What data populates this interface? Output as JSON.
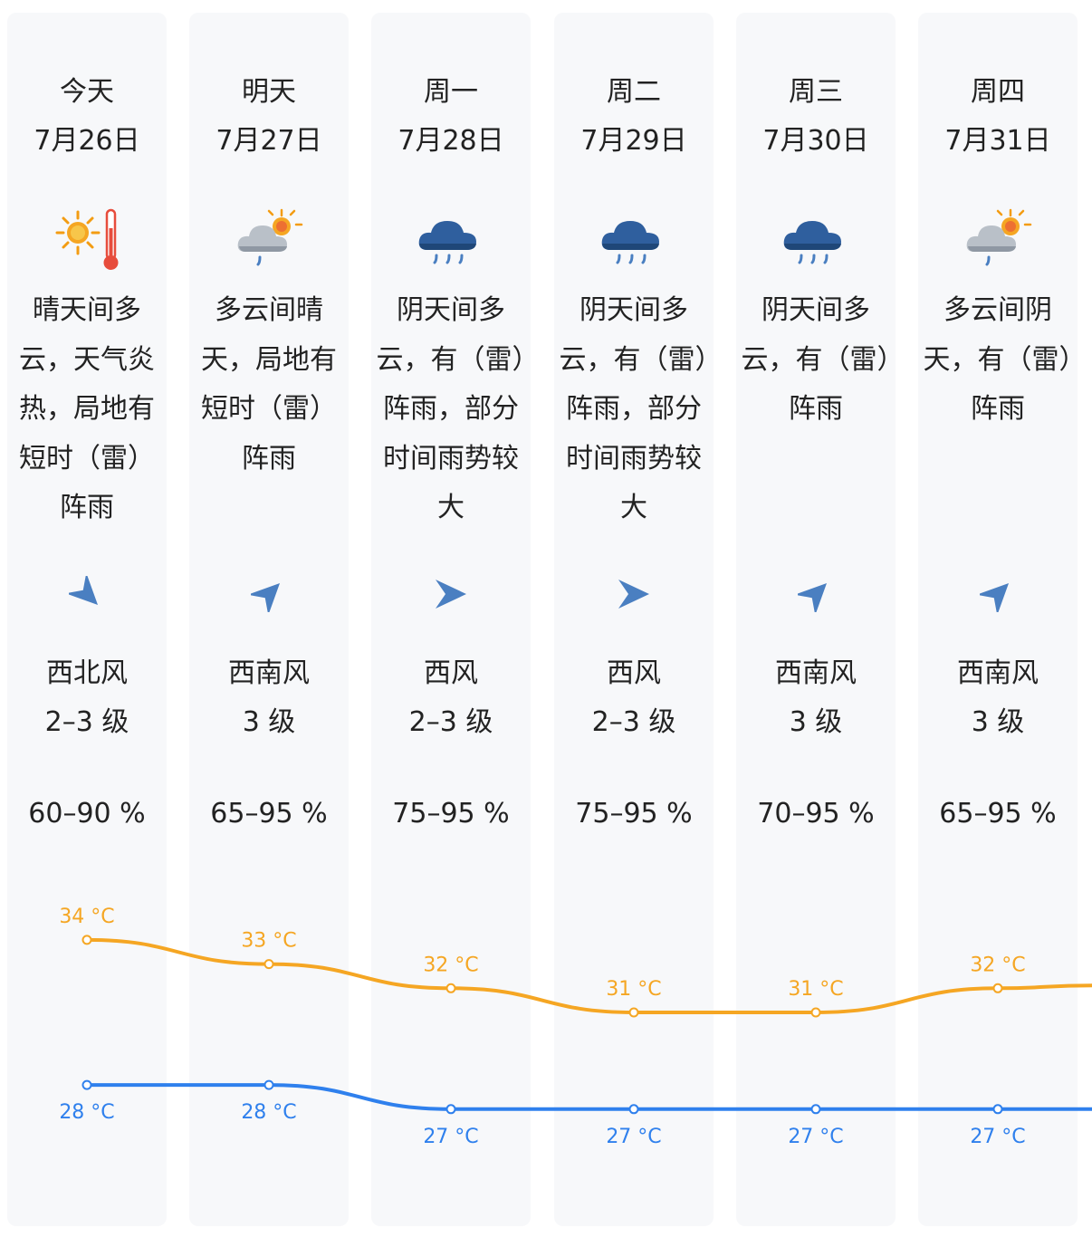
{
  "days": [
    {
      "day": "今天",
      "date": "7月26日",
      "icon": "sun-thermometer-icon",
      "desc": "晴天间多云，天气炎热，局地有短时（雷）阵雨",
      "wind_dir": "西北风",
      "wind_level": "2–3 级",
      "wind_heading": "northwest",
      "humidity": "60–90 %"
    },
    {
      "day": "明天",
      "date": "7月27日",
      "icon": "partly-cloudy-rain-icon",
      "desc": "多云间晴天，局地有短时（雷）阵雨",
      "wind_dir": "西南风",
      "wind_level": "3 级",
      "wind_heading": "southwest",
      "humidity": "65–95 %"
    },
    {
      "day": "周一",
      "date": "7月28日",
      "icon": "cloud-rain-icon",
      "desc": "阴天间多云，有（雷）阵雨，部分时间雨势较大",
      "wind_dir": "西风",
      "wind_level": "2–3 级",
      "wind_heading": "west",
      "humidity": "75–95 %"
    },
    {
      "day": "周二",
      "date": "7月29日",
      "icon": "cloud-rain-icon",
      "desc": "阴天间多云，有（雷）阵雨，部分时间雨势较大",
      "wind_dir": "西风",
      "wind_level": "2–3 级",
      "wind_heading": "west",
      "humidity": "75–95 %"
    },
    {
      "day": "周三",
      "date": "7月30日",
      "icon": "cloud-rain-icon",
      "desc": "阴天间多云，有（雷）阵雨",
      "wind_dir": "西南风",
      "wind_level": "3 级",
      "wind_heading": "southwest",
      "humidity": "70–95 %"
    },
    {
      "day": "周四",
      "date": "7月31日",
      "icon": "partly-cloudy-rain-icon",
      "desc": "多云间阴天，有（雷）阵雨",
      "wind_dir": "西南风",
      "wind_level": "3 级",
      "wind_heading": "southwest",
      "humidity": "65–95 %"
    }
  ],
  "chart_data": {
    "type": "line",
    "categories": [
      "今天",
      "明天",
      "周一",
      "周二",
      "周三",
      "周四"
    ],
    "series": [
      {
        "values": [
          34,
          33,
          32,
          31,
          31,
          32
        ],
        "labels": [
          "34 °C",
          "33 °C",
          "32 °C",
          "31 °C",
          "31 °C",
          "32 °C"
        ],
        "color": "#f5a623"
      },
      {
        "values": [
          28,
          28,
          27,
          27,
          27,
          27
        ],
        "labels": [
          "28 °C",
          "28 °C",
          "27 °C",
          "27 °C",
          "27 °C",
          "27 °C"
        ],
        "color": "#2f80ed"
      }
    ]
  },
  "colors": {
    "card_bg": "#f7f8fa",
    "high": "#f5a623",
    "low": "#2f80ed",
    "wind_arrow": "#4a7fc1"
  }
}
